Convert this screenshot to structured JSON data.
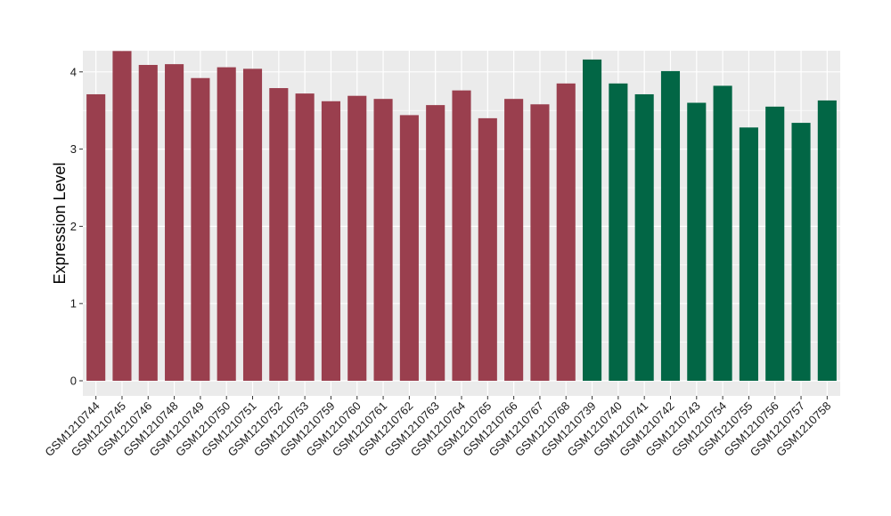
{
  "chart_data": {
    "type": "bar",
    "title": "",
    "xlabel": "",
    "ylabel": "Expression Level",
    "ylim": [
      0,
      4.47
    ],
    "yticks": [
      0,
      1,
      2,
      3,
      4
    ],
    "grid": true,
    "background": "#ebebeb",
    "categories": [
      "GSM1210744",
      "GSM1210745",
      "GSM1210746",
      "GSM1210748",
      "GSM1210749",
      "GSM1210750",
      "GSM1210751",
      "GSM1210752",
      "GSM1210753",
      "GSM1210759",
      "GSM1210760",
      "GSM1210761",
      "GSM1210762",
      "GSM1210763",
      "GSM1210764",
      "GSM1210765",
      "GSM1210766",
      "GSM1210767",
      "GSM1210768",
      "GSM1210739",
      "GSM1210740",
      "GSM1210741",
      "GSM1210742",
      "GSM1210743",
      "GSM1210754",
      "GSM1210755",
      "GSM1210756",
      "GSM1210757",
      "GSM1210758"
    ],
    "values": [
      3.71,
      4.27,
      4.09,
      4.1,
      3.92,
      4.06,
      4.04,
      3.79,
      3.72,
      3.62,
      3.69,
      3.65,
      3.44,
      3.57,
      3.76,
      3.4,
      3.65,
      3.58,
      3.85,
      4.16,
      3.85,
      3.71,
      4.01,
      3.6,
      3.82,
      3.28,
      3.55,
      3.34,
      3.63
    ],
    "group_colors": [
      "#9a3f4e",
      "#026645"
    ],
    "groups": [
      0,
      0,
      0,
      0,
      0,
      0,
      0,
      0,
      0,
      0,
      0,
      0,
      0,
      0,
      0,
      0,
      0,
      0,
      0,
      1,
      1,
      1,
      1,
      1,
      1,
      1,
      1,
      1,
      1
    ]
  }
}
